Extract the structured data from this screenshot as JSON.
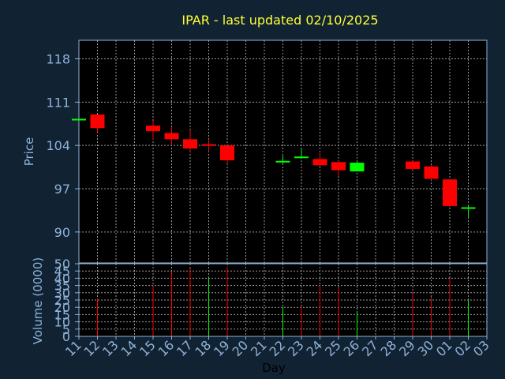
{
  "chart_data": [
    {
      "type": "candlestick",
      "title": "IPAR - last updated 02/10/2025",
      "ylabel": "Price",
      "ylim": [
        85,
        121
      ],
      "yticks": [
        "90",
        "97",
        "104",
        "111",
        "118"
      ],
      "grid": true,
      "up_color": "#00ff00",
      "down_color": "#ff0000",
      "candles": [
        {
          "x": "11",
          "open": 108.3,
          "high": 108.3,
          "low": 108.3,
          "close": 108.3
        },
        {
          "x": "12",
          "open": 109.0,
          "high": 109.0,
          "low": 106.0,
          "close": 106.8
        },
        {
          "x": "15",
          "open": 107.2,
          "high": 108.0,
          "low": 105.0,
          "close": 106.3
        },
        {
          "x": "16",
          "open": 106.0,
          "high": 107.0,
          "low": 104.0,
          "close": 105.0
        },
        {
          "x": "17",
          "open": 105.0,
          "high": 106.5,
          "low": 103.0,
          "close": 103.5
        },
        {
          "x": "18",
          "open": 104.2,
          "high": 105.0,
          "low": 103.0,
          "close": 104.0
        },
        {
          "x": "19",
          "open": 104.0,
          "high": 104.0,
          "low": 101.0,
          "close": 101.6
        },
        {
          "x": "22",
          "open": 101.5,
          "high": 102.3,
          "low": 101.0,
          "close": 101.5
        },
        {
          "x": "23",
          "open": 102.2,
          "high": 103.5,
          "low": 102.0,
          "close": 102.2
        },
        {
          "x": "24",
          "open": 101.8,
          "high": 103.0,
          "low": 100.6,
          "close": 100.8
        },
        {
          "x": "25",
          "open": 101.3,
          "high": 101.5,
          "low": 99.0,
          "close": 100.0
        },
        {
          "x": "26",
          "open": 99.8,
          "high": 101.4,
          "low": 99.8,
          "close": 101.2
        },
        {
          "x": "29",
          "open": 101.4,
          "high": 101.5,
          "low": 100.0,
          "close": 100.2
        },
        {
          "x": "30",
          "open": 100.6,
          "high": 100.8,
          "low": 98.4,
          "close": 98.6
        },
        {
          "x": "01",
          "open": 98.5,
          "high": 98.5,
          "low": 94.0,
          "close": 94.2
        },
        {
          "x": "02",
          "open": 94.0,
          "high": 94.3,
          "low": 92.3,
          "close": 94.0
        }
      ]
    },
    {
      "type": "bar",
      "ylabel": "Volume (0000)",
      "xlabel": "Day",
      "ylim": [
        0,
        50
      ],
      "yticks": [
        "0",
        "5",
        "10",
        "15",
        "20",
        "25",
        "30",
        "35",
        "40",
        "45",
        "50"
      ],
      "categories": [
        "11",
        "12",
        "13",
        "14",
        "15",
        "16",
        "17",
        "18",
        "19",
        "20",
        "21",
        "22",
        "23",
        "24",
        "25",
        "26",
        "27",
        "28",
        "29",
        "30",
        "01",
        "02",
        "03"
      ],
      "values": [
        0,
        26,
        0,
        0,
        35,
        45,
        47,
        40,
        48,
        0,
        0,
        20,
        20,
        35,
        34,
        17,
        0,
        0,
        30,
        27,
        40,
        25,
        0
      ],
      "colors": [
        "#ff0000",
        "#ff0000",
        "#ff0000",
        "#ff0000",
        "#ff0000",
        "#ff0000",
        "#ff0000",
        "#00ff00",
        "#ff0000",
        "#ff0000",
        "#ff0000",
        "#00ff00",
        "#ff0000",
        "#ff0000",
        "#ff0000",
        "#00ff00",
        "#ff0000",
        "#ff0000",
        "#ff0000",
        "#ff0000",
        "#ff0000",
        "#00ff00",
        "#ff0000"
      ]
    }
  ]
}
